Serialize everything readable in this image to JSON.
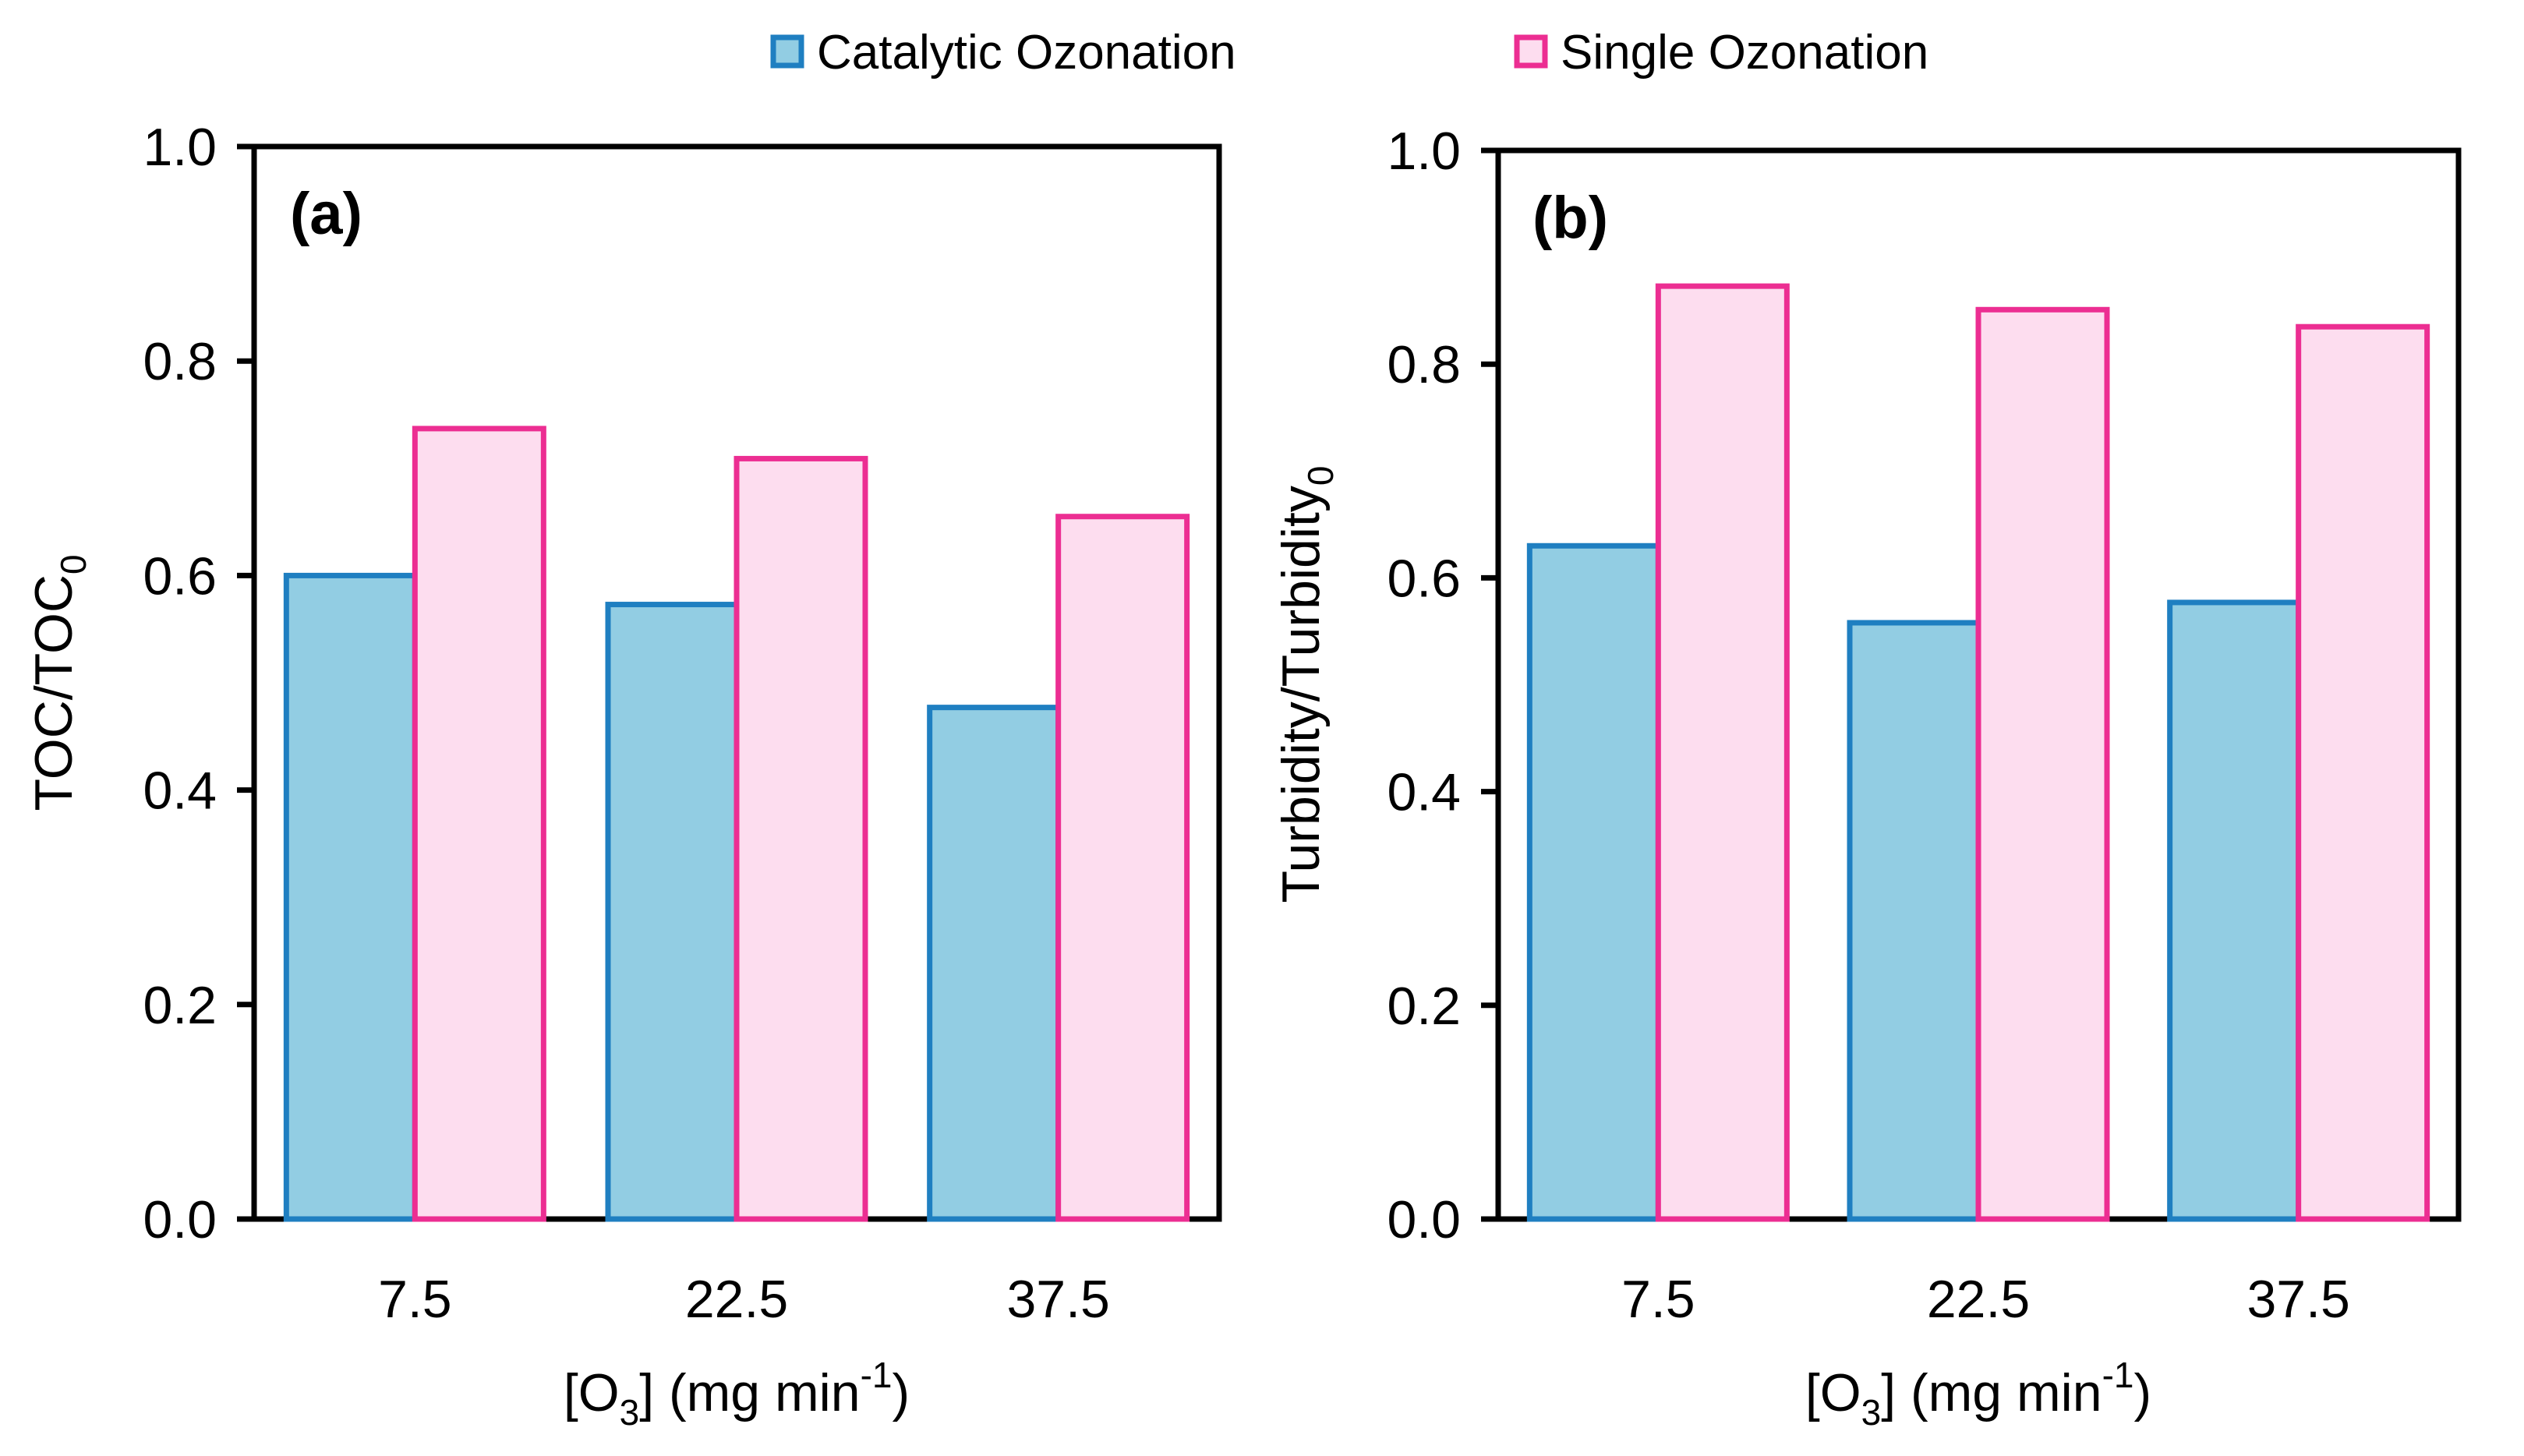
{
  "chart_data": [
    {
      "type": "bar",
      "panel_label": "(a)",
      "categories": [
        "7.5",
        "22.5",
        "37.5"
      ],
      "series": [
        {
          "name": "Catalytic Ozonation",
          "values": [
            0.6,
            0.573,
            0.477
          ]
        },
        {
          "name": "Single Ozonation",
          "values": [
            0.737,
            0.709,
            0.655
          ]
        }
      ],
      "xlabel": {
        "main": "[O",
        "sub": "3",
        "rest": "] (mg min",
        "sup": "-1",
        "end": ")"
      },
      "ylabel": {
        "main": "TOC/TOC",
        "sub": "0"
      },
      "ylim": [
        0,
        1.0
      ],
      "yticks": [
        "0.0",
        "0.2",
        "0.4",
        "0.6",
        "0.8",
        "1.0"
      ]
    },
    {
      "type": "bar",
      "panel_label": "(b)",
      "categories": [
        "7.5",
        "22.5",
        "37.5"
      ],
      "series": [
        {
          "name": "Catalytic Ozonation",
          "values": [
            0.63,
            0.558,
            0.577
          ]
        },
        {
          "name": "Single Ozonation",
          "values": [
            0.873,
            0.851,
            0.835
          ]
        }
      ],
      "xlabel": {
        "main": "[O",
        "sub": "3",
        "rest": "] (mg min",
        "sup": "-1",
        "end": ")"
      },
      "ylabel": {
        "main": "Turbidity/Turbidity",
        "sub": "0"
      },
      "ylim": [
        0,
        1.0
      ],
      "yticks": [
        "0.0",
        "0.2",
        "0.4",
        "0.6",
        "0.8",
        "1.0"
      ]
    }
  ],
  "legend": {
    "position": "top-center",
    "items": [
      {
        "label": "Catalytic Ozonation",
        "fill": "#92cde3",
        "stroke": "#1f7fc1"
      },
      {
        "label": "Single Ozonation",
        "fill": "#fdddef",
        "stroke": "#ec2e92"
      }
    ]
  },
  "colors": {
    "catalytic_fill": "#92cde3",
    "catalytic_stroke": "#1f7fc1",
    "single_fill": "#fdddef",
    "single_stroke": "#ec2e92"
  }
}
